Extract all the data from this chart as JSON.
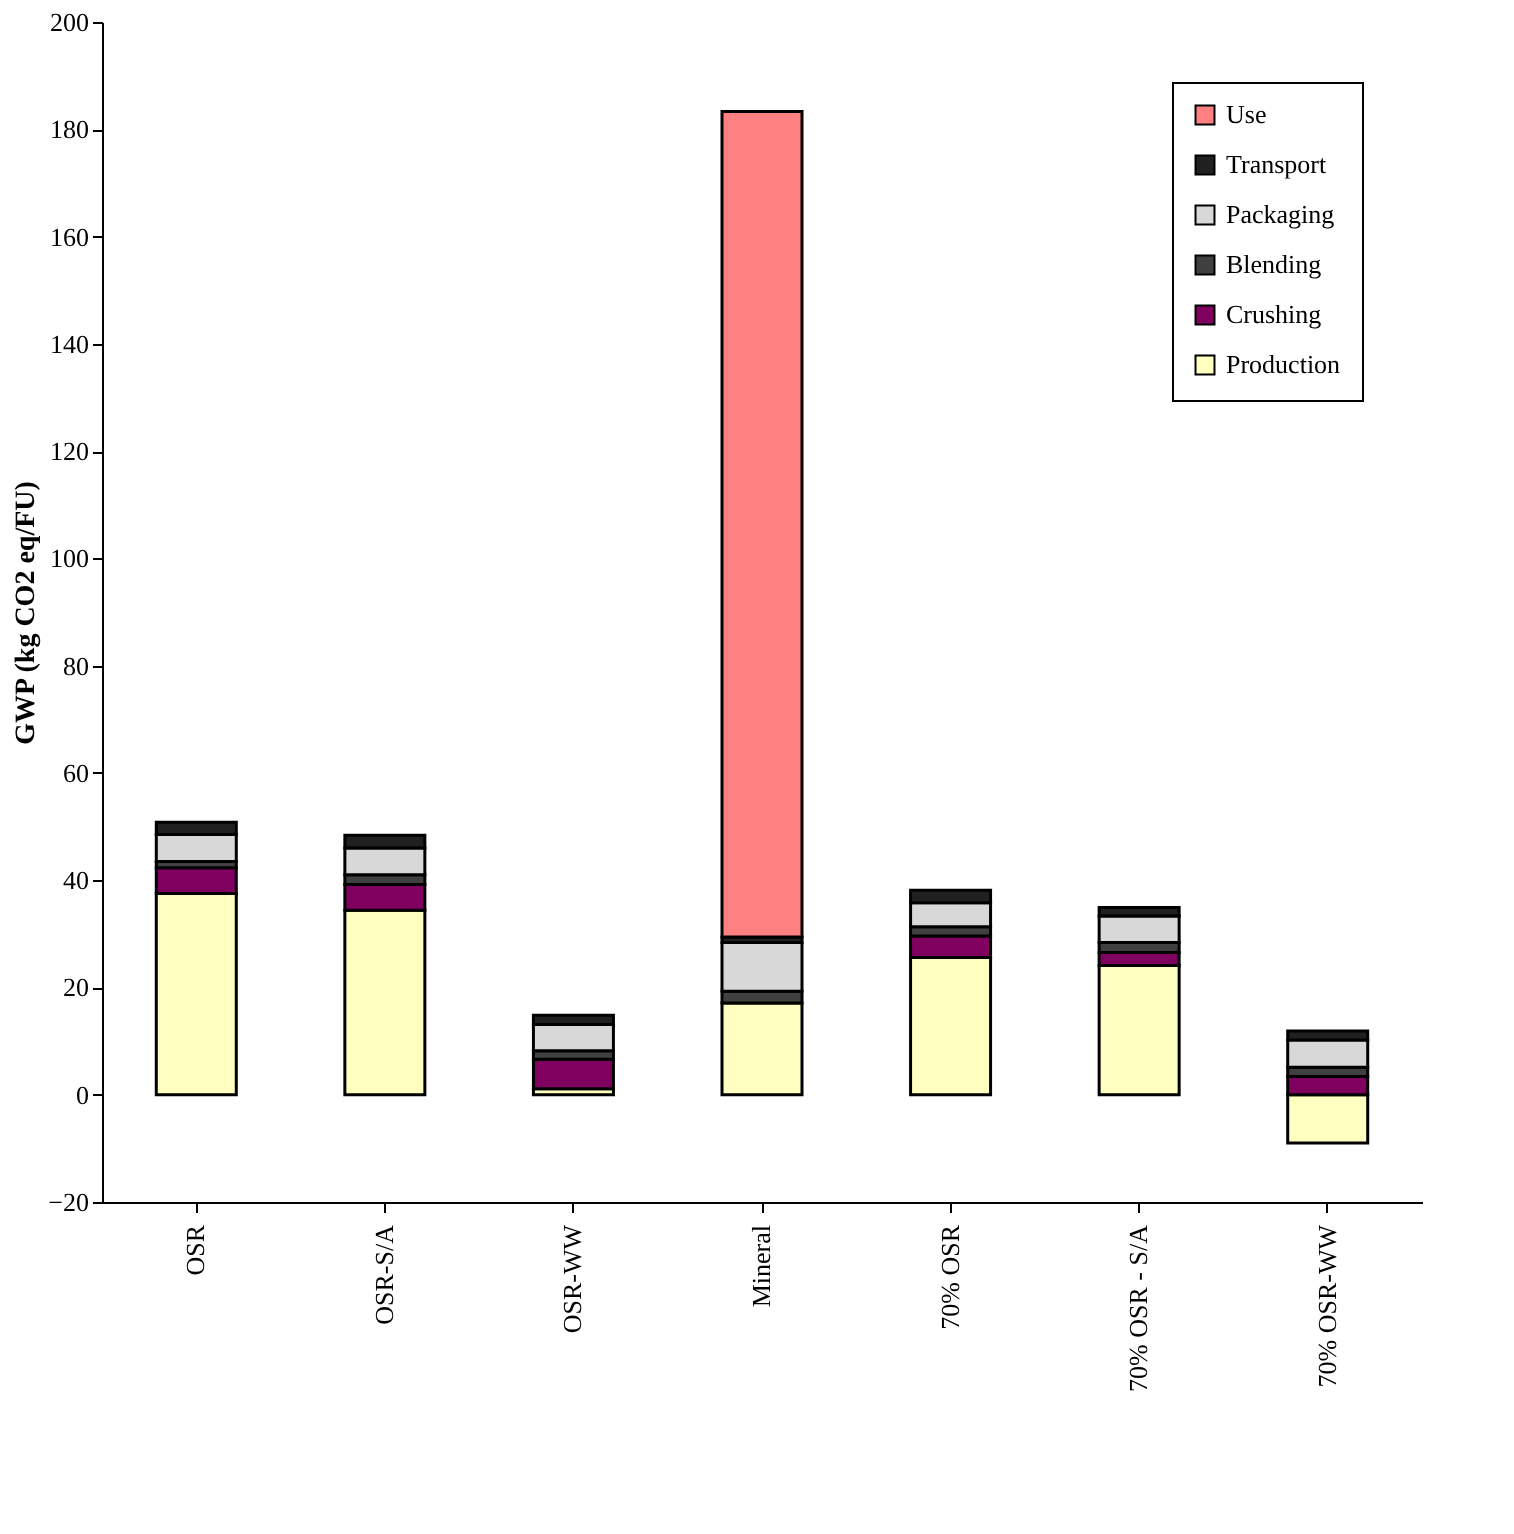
{
  "chart_data": {
    "type": "bar",
    "stacked": true,
    "ylabel": "GWP (kg CO2 eq/FU)",
    "categories": [
      "OSR",
      "OSR-S/A",
      "OSR-WW",
      "Mineral",
      "70% OSR",
      "70% OSR - S/A",
      "70% OSR-WW"
    ],
    "series": [
      {
        "name": "Production",
        "color": "#ffffc0",
        "values": [
          37.5,
          34.4,
          1.1,
          17.1,
          25.6,
          24.1,
          -9
        ]
      },
      {
        "name": "Crushing",
        "color": "#800060",
        "values": [
          4.8,
          4.8,
          5.5,
          null,
          4,
          2.4,
          3.4
        ]
      },
      {
        "name": "Blending",
        "color": "#404040",
        "values": [
          1.2,
          1.8,
          1.6,
          2.2,
          1.7,
          1.9,
          1.7
        ]
      },
      {
        "name": "Packaging",
        "color": "#d8d8d8",
        "values": [
          5,
          5,
          4.9,
          9.1,
          4.5,
          4.9,
          5.1
        ]
      },
      {
        "name": "Transport",
        "color": "#202020",
        "values": [
          2.3,
          2.4,
          1.7,
          1.0,
          2.3,
          1.6,
          1.7
        ]
      },
      {
        "name": "Use",
        "color": "#ff8080",
        "values": [
          null,
          null,
          null,
          153.9,
          null,
          null,
          null
        ]
      }
    ],
    "ylim": [
      -20,
      200
    ],
    "yticks": [
      -20,
      0,
      20,
      40,
      60,
      80,
      100,
      120,
      140,
      160,
      180,
      200
    ],
    "grid": false,
    "legend": "top right"
  }
}
